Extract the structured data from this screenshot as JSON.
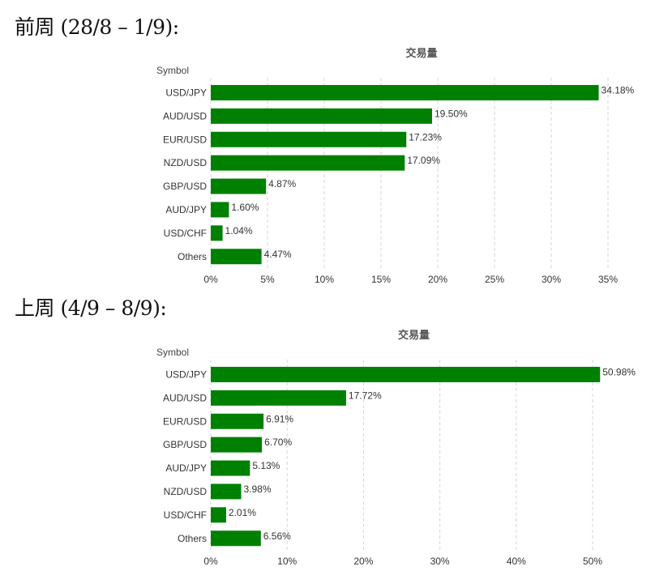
{
  "sections": [
    {
      "heading": "前周 (28/8 – 1/9):"
    },
    {
      "heading": "上周 (4/9 – 8/9):"
    }
  ],
  "colors": {
    "bar": "#008000",
    "grid": "#d6d6d6"
  },
  "chart_data": [
    {
      "type": "bar",
      "orientation": "horizontal",
      "title": "交易量",
      "ylabel": "Symbol",
      "xlabel": "",
      "categories": [
        "USD/JPY",
        "AUD/USD",
        "EUR/USD",
        "NZD/USD",
        "GBP/USD",
        "AUD/JPY",
        "USD/CHF",
        "Others"
      ],
      "values": [
        34.18,
        19.5,
        17.23,
        17.09,
        4.87,
        1.6,
        1.04,
        4.47
      ],
      "value_labels": [
        "34.18%",
        "19.50%",
        "17.23%",
        "17.09%",
        "4.87%",
        "1.60%",
        "1.04%",
        "4.47%"
      ],
      "xlim": [
        0,
        35
      ],
      "ticks": [
        0,
        5,
        10,
        15,
        20,
        25,
        30,
        35
      ],
      "tick_labels": [
        "0%",
        "5%",
        "10%",
        "15%",
        "20%",
        "25%",
        "30%",
        "35%"
      ],
      "grid": true
    },
    {
      "type": "bar",
      "orientation": "horizontal",
      "title": "交易量",
      "ylabel": "Symbol",
      "xlabel": "",
      "categories": [
        "USD/JPY",
        "AUD/USD",
        "EUR/USD",
        "GBP/USD",
        "AUD/JPY",
        "NZD/USD",
        "USD/CHF",
        "Others"
      ],
      "values": [
        50.98,
        17.72,
        6.91,
        6.7,
        5.13,
        3.98,
        2.01,
        6.56
      ],
      "value_labels": [
        "50.98%",
        "17.72%",
        "6.91%",
        "6.70%",
        "5.13%",
        "3.98%",
        "2.01%",
        "6.56%"
      ],
      "xlim": [
        0,
        50
      ],
      "ticks": [
        0,
        10,
        20,
        30,
        40,
        50
      ],
      "tick_labels": [
        "0%",
        "10%",
        "20%",
        "30%",
        "40%",
        "50%"
      ],
      "grid": true
    }
  ]
}
